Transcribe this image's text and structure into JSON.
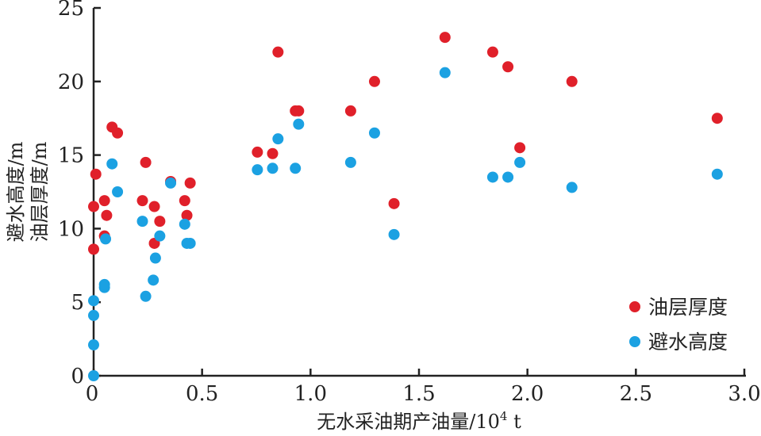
{
  "chart_data": {
    "type": "scatter",
    "xlabel": "无水采油期产油量/10",
    "xlabel_sup": "4",
    "xlabel_unit": " t",
    "ylabel_lines": [
      "避水高度/m",
      "油层厚度/m"
    ],
    "xlim": [
      0,
      3.0
    ],
    "ylim": [
      0,
      25
    ],
    "x_ticks": [
      0,
      0.5,
      1.0,
      1.5,
      2.0,
      2.5,
      3.0
    ],
    "x_tick_labels": [
      "0",
      "0.5",
      "1.0",
      "1.5",
      "2.0",
      "2.5",
      "3.0"
    ],
    "y_ticks": [
      0,
      5,
      10,
      15,
      20,
      25
    ],
    "y_tick_labels": [
      "0",
      "5",
      "10",
      "15",
      "20",
      "25"
    ],
    "legend_position": "bottom-right",
    "series": [
      {
        "name": "油层厚度",
        "color": "#e0202a",
        "points": [
          [
            0.0,
            8.6
          ],
          [
            0.0,
            11.5
          ],
          [
            0.01,
            13.7
          ],
          [
            0.05,
            11.9
          ],
          [
            0.05,
            9.5
          ],
          [
            0.06,
            10.9
          ],
          [
            0.085,
            16.9
          ],
          [
            0.11,
            16.5
          ],
          [
            0.225,
            11.9
          ],
          [
            0.24,
            14.5
          ],
          [
            0.28,
            11.5
          ],
          [
            0.28,
            9.0
          ],
          [
            0.305,
            10.5
          ],
          [
            0.355,
            13.2
          ],
          [
            0.42,
            11.9
          ],
          [
            0.43,
            10.9
          ],
          [
            0.445,
            13.1
          ],
          [
            0.755,
            15.2
          ],
          [
            0.825,
            15.1
          ],
          [
            0.85,
            22.0
          ],
          [
            0.93,
            18.0
          ],
          [
            0.945,
            18.0
          ],
          [
            1.185,
            18.0
          ],
          [
            1.295,
            20.0
          ],
          [
            1.385,
            11.7
          ],
          [
            1.62,
            23.0
          ],
          [
            1.84,
            22.0
          ],
          [
            1.91,
            21.0
          ],
          [
            1.965,
            15.5
          ],
          [
            2.205,
            20.0
          ],
          [
            2.875,
            17.5
          ]
        ]
      },
      {
        "name": "避水高度",
        "color": "#1ba1e2",
        "points": [
          [
            0.0,
            0.0
          ],
          [
            0.0,
            2.1
          ],
          [
            0.0,
            4.1
          ],
          [
            0.0,
            5.1
          ],
          [
            0.05,
            6.0
          ],
          [
            0.05,
            6.2
          ],
          [
            0.055,
            9.3
          ],
          [
            0.085,
            14.4
          ],
          [
            0.11,
            12.5
          ],
          [
            0.225,
            10.5
          ],
          [
            0.24,
            5.4
          ],
          [
            0.275,
            6.5
          ],
          [
            0.285,
            8.0
          ],
          [
            0.305,
            9.5
          ],
          [
            0.355,
            13.1
          ],
          [
            0.42,
            10.3
          ],
          [
            0.43,
            9.0
          ],
          [
            0.445,
            9.0
          ],
          [
            0.755,
            14.0
          ],
          [
            0.825,
            14.1
          ],
          [
            0.85,
            16.1
          ],
          [
            0.93,
            14.1
          ],
          [
            0.945,
            17.1
          ],
          [
            1.185,
            14.5
          ],
          [
            1.295,
            16.5
          ],
          [
            1.385,
            9.6
          ],
          [
            1.62,
            20.6
          ],
          [
            1.84,
            13.5
          ],
          [
            1.91,
            13.5
          ],
          [
            1.965,
            14.5
          ],
          [
            2.205,
            12.8
          ],
          [
            2.875,
            13.7
          ]
        ]
      }
    ]
  }
}
